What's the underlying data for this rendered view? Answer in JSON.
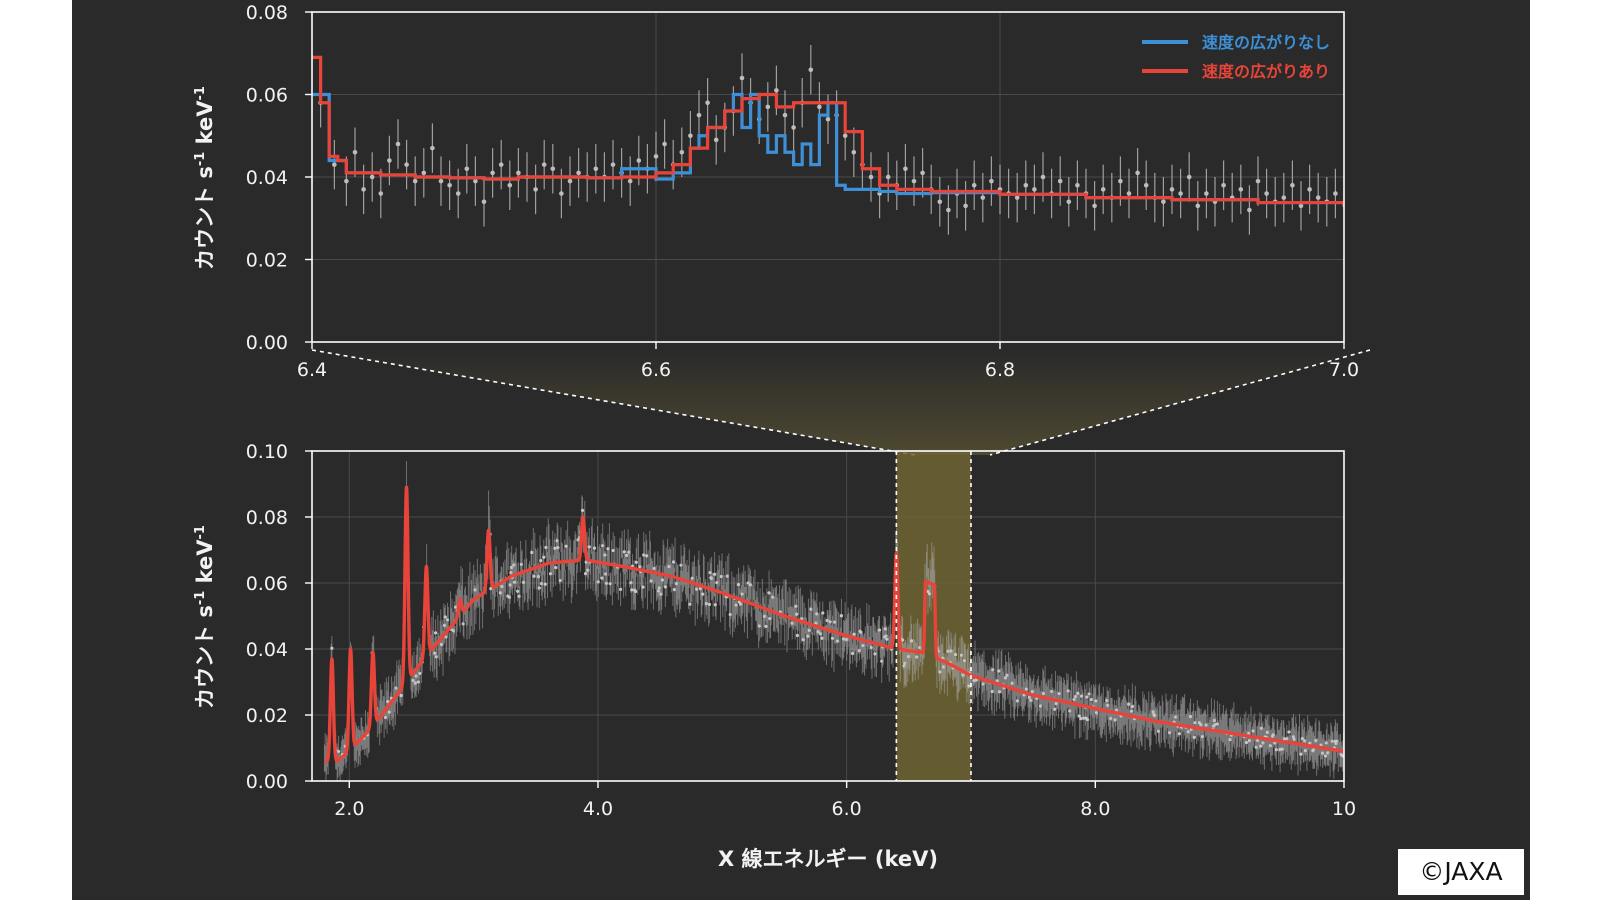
{
  "credit": "©JAXA",
  "chart_data": [
    {
      "type": "line",
      "panel": "top",
      "ylabel_main": "カウント s",
      "ylabel_sup1": "-1",
      "ylabel_mid": " keV",
      "ylabel_sup2": "-1",
      "xlim": [
        6.4,
        7.0
      ],
      "ylim": [
        0.0,
        0.08
      ],
      "grid": true,
      "legend_position": "top-right",
      "xticks": [
        6.4,
        6.6,
        6.8,
        7.0
      ],
      "xtick_labels": [
        "6.4",
        "6.6",
        "6.8",
        "7.0"
      ],
      "yticks": [
        0.0,
        0.02,
        0.04,
        0.06,
        0.08
      ],
      "ytick_labels": [
        "0.00",
        "0.02",
        "0.04",
        "0.06",
        "0.08"
      ],
      "series": [
        {
          "name": "速度の広がりなし",
          "color": "#3d8fd6",
          "x": [
            6.4,
            6.405,
            6.41,
            6.415,
            6.42,
            6.44,
            6.46,
            6.48,
            6.5,
            6.52,
            6.54,
            6.56,
            6.58,
            6.59,
            6.6,
            6.61,
            6.62,
            6.625,
            6.63,
            6.64,
            6.645,
            6.65,
            6.655,
            6.66,
            6.665,
            6.67,
            6.675,
            6.68,
            6.685,
            6.69,
            6.695,
            6.7,
            6.705,
            6.71,
            6.72,
            6.73,
            6.74,
            6.76,
            6.8,
            6.85,
            6.9,
            6.95,
            7.0
          ],
          "y": [
            0.06,
            0.06,
            0.044,
            0.044,
            0.041,
            0.0405,
            0.04,
            0.0398,
            0.0395,
            0.04,
            0.04,
            0.0398,
            0.042,
            0.042,
            0.0395,
            0.041,
            0.047,
            0.05,
            0.052,
            0.056,
            0.06,
            0.052,
            0.06,
            0.05,
            0.046,
            0.05,
            0.046,
            0.043,
            0.048,
            0.043,
            0.055,
            0.058,
            0.038,
            0.037,
            0.037,
            0.0365,
            0.036,
            0.0362,
            0.0358,
            0.035,
            0.0345,
            0.0338,
            0.0332
          ]
        },
        {
          "name": "速度の広がりあり",
          "color": "#e8443a",
          "x": [
            6.4,
            6.405,
            6.41,
            6.415,
            6.42,
            6.44,
            6.46,
            6.48,
            6.5,
            6.52,
            6.54,
            6.56,
            6.58,
            6.6,
            6.61,
            6.62,
            6.63,
            6.64,
            6.65,
            6.66,
            6.67,
            6.68,
            6.69,
            6.7,
            6.71,
            6.72,
            6.73,
            6.74,
            6.76,
            6.8,
            6.85,
            6.9,
            6.95,
            7.0
          ],
          "y": [
            0.069,
            0.058,
            0.045,
            0.044,
            0.041,
            0.0405,
            0.04,
            0.0398,
            0.0395,
            0.04,
            0.04,
            0.0398,
            0.04,
            0.041,
            0.043,
            0.047,
            0.052,
            0.056,
            0.059,
            0.06,
            0.057,
            0.058,
            0.058,
            0.058,
            0.051,
            0.042,
            0.038,
            0.037,
            0.0365,
            0.0358,
            0.035,
            0.0345,
            0.0338,
            0.0332
          ]
        },
        {
          "name": "",
          "kind": "data points with error bars",
          "color": "#bdbdbd",
          "x": [
            6.405,
            6.413,
            6.42,
            6.425,
            6.43,
            6.435,
            6.44,
            6.445,
            6.45,
            6.455,
            6.46,
            6.465,
            6.47,
            6.475,
            6.48,
            6.485,
            6.49,
            6.495,
            6.5,
            6.505,
            6.51,
            6.515,
            6.52,
            6.525,
            6.53,
            6.535,
            6.54,
            6.545,
            6.55,
            6.555,
            6.56,
            6.565,
            6.57,
            6.575,
            6.58,
            6.585,
            6.59,
            6.595,
            6.6,
            6.605,
            6.61,
            6.615,
            6.62,
            6.625,
            6.63,
            6.635,
            6.64,
            6.645,
            6.65,
            6.655,
            6.66,
            6.665,
            6.67,
            6.675,
            6.68,
            6.685,
            6.69,
            6.695,
            6.7,
            6.705,
            6.71,
            6.715,
            6.72,
            6.725,
            6.73,
            6.735,
            6.74,
            6.745,
            6.75,
            6.755,
            6.76,
            6.765,
            6.77,
            6.775,
            6.78,
            6.785,
            6.79,
            6.795,
            6.8,
            6.805,
            6.81,
            6.815,
            6.82,
            6.825,
            6.83,
            6.835,
            6.84,
            6.845,
            6.85,
            6.855,
            6.86,
            6.865,
            6.87,
            6.875,
            6.88,
            6.885,
            6.89,
            6.895,
            6.9,
            6.905,
            6.91,
            6.915,
            6.92,
            6.925,
            6.93,
            6.935,
            6.94,
            6.945,
            6.95,
            6.955,
            6.96,
            6.965,
            6.97,
            6.975,
            6.98,
            6.985,
            6.99,
            6.995
          ],
          "y": [
            0.058,
            0.043,
            0.039,
            0.046,
            0.037,
            0.04,
            0.036,
            0.044,
            0.048,
            0.043,
            0.039,
            0.041,
            0.047,
            0.039,
            0.038,
            0.036,
            0.042,
            0.039,
            0.034,
            0.041,
            0.043,
            0.038,
            0.041,
            0.04,
            0.037,
            0.043,
            0.042,
            0.036,
            0.039,
            0.041,
            0.04,
            0.042,
            0.04,
            0.043,
            0.041,
            0.039,
            0.044,
            0.042,
            0.045,
            0.048,
            0.043,
            0.046,
            0.05,
            0.055,
            0.058,
            0.049,
            0.052,
            0.056,
            0.064,
            0.058,
            0.054,
            0.057,
            0.061,
            0.055,
            0.052,
            0.058,
            0.066,
            0.057,
            0.054,
            0.055,
            0.05,
            0.046,
            0.043,
            0.04,
            0.036,
            0.04,
            0.038,
            0.042,
            0.039,
            0.041,
            0.037,
            0.034,
            0.032,
            0.036,
            0.033,
            0.038,
            0.035,
            0.039,
            0.037,
            0.036,
            0.035,
            0.038,
            0.037,
            0.04,
            0.036,
            0.039,
            0.034,
            0.038,
            0.036,
            0.033,
            0.037,
            0.035,
            0.039,
            0.036,
            0.041,
            0.038,
            0.035,
            0.034,
            0.037,
            0.036,
            0.04,
            0.033,
            0.036,
            0.034,
            0.038,
            0.035,
            0.037,
            0.032,
            0.039,
            0.036,
            0.034,
            0.035,
            0.038,
            0.033,
            0.037,
            0.035,
            0.034,
            0.036
          ],
          "yerr": 0.006
        }
      ]
    },
    {
      "type": "line",
      "panel": "bottom",
      "xlabel": "X 線エネルギー (keV)",
      "ylabel_main": "カウント s",
      "ylabel_sup1": "-1",
      "ylabel_mid": " keV",
      "ylabel_sup2": "-1",
      "xlim": [
        1.7,
        10.0
      ],
      "ylim": [
        0.0,
        0.1
      ],
      "grid": true,
      "highlight_band": [
        6.4,
        7.0
      ],
      "xticks": [
        2.0,
        4.0,
        6.0,
        8.0,
        10.0
      ],
      "xtick_labels": [
        "2.0",
        "4.0",
        "6.0",
        "8.0",
        "10"
      ],
      "yticks": [
        0.0,
        0.02,
        0.04,
        0.06,
        0.08,
        0.1
      ],
      "ytick_labels": [
        "0.00",
        "0.02",
        "0.04",
        "0.06",
        "0.08",
        "0.10"
      ],
      "series": [
        {
          "name": "",
          "kind": "model (red)",
          "color": "#e8443a",
          "x": [
            1.8,
            1.9,
            2.0,
            2.2,
            2.4,
            2.6,
            2.8,
            3.0,
            3.3,
            3.6,
            3.9,
            4.2,
            4.6,
            5.0,
            5.5,
            6.0,
            6.4,
            6.6,
            6.8,
            7.0,
            7.5,
            8.0,
            8.5,
            9.0,
            9.5,
            10.0
          ],
          "y": [
            0.006,
            0.006,
            0.009,
            0.017,
            0.027,
            0.037,
            0.046,
            0.055,
            0.062,
            0.066,
            0.067,
            0.065,
            0.062,
            0.057,
            0.05,
            0.044,
            0.04,
            0.039,
            0.036,
            0.032,
            0.026,
            0.022,
            0.018,
            0.015,
            0.012,
            0.009
          ],
          "lines": [
            {
              "x": 1.86,
              "peak": 0.037
            },
            {
              "x": 2.01,
              "peak": 0.04
            },
            {
              "x": 2.19,
              "peak": 0.039
            },
            {
              "x": 2.46,
              "peak": 0.089
            },
            {
              "x": 2.62,
              "peak": 0.065
            },
            {
              "x": 2.89,
              "peak": 0.055
            },
            {
              "x": 3.12,
              "peak": 0.076
            },
            {
              "x": 3.88,
              "peak": 0.08
            },
            {
              "x": 6.4,
              "peak": 0.069
            }
          ],
          "broad_line": {
            "x": 6.67,
            "peak": 0.06
          }
        },
        {
          "name": "",
          "kind": "data points with error bars",
          "color": "#bdbdbd"
        }
      ]
    }
  ]
}
